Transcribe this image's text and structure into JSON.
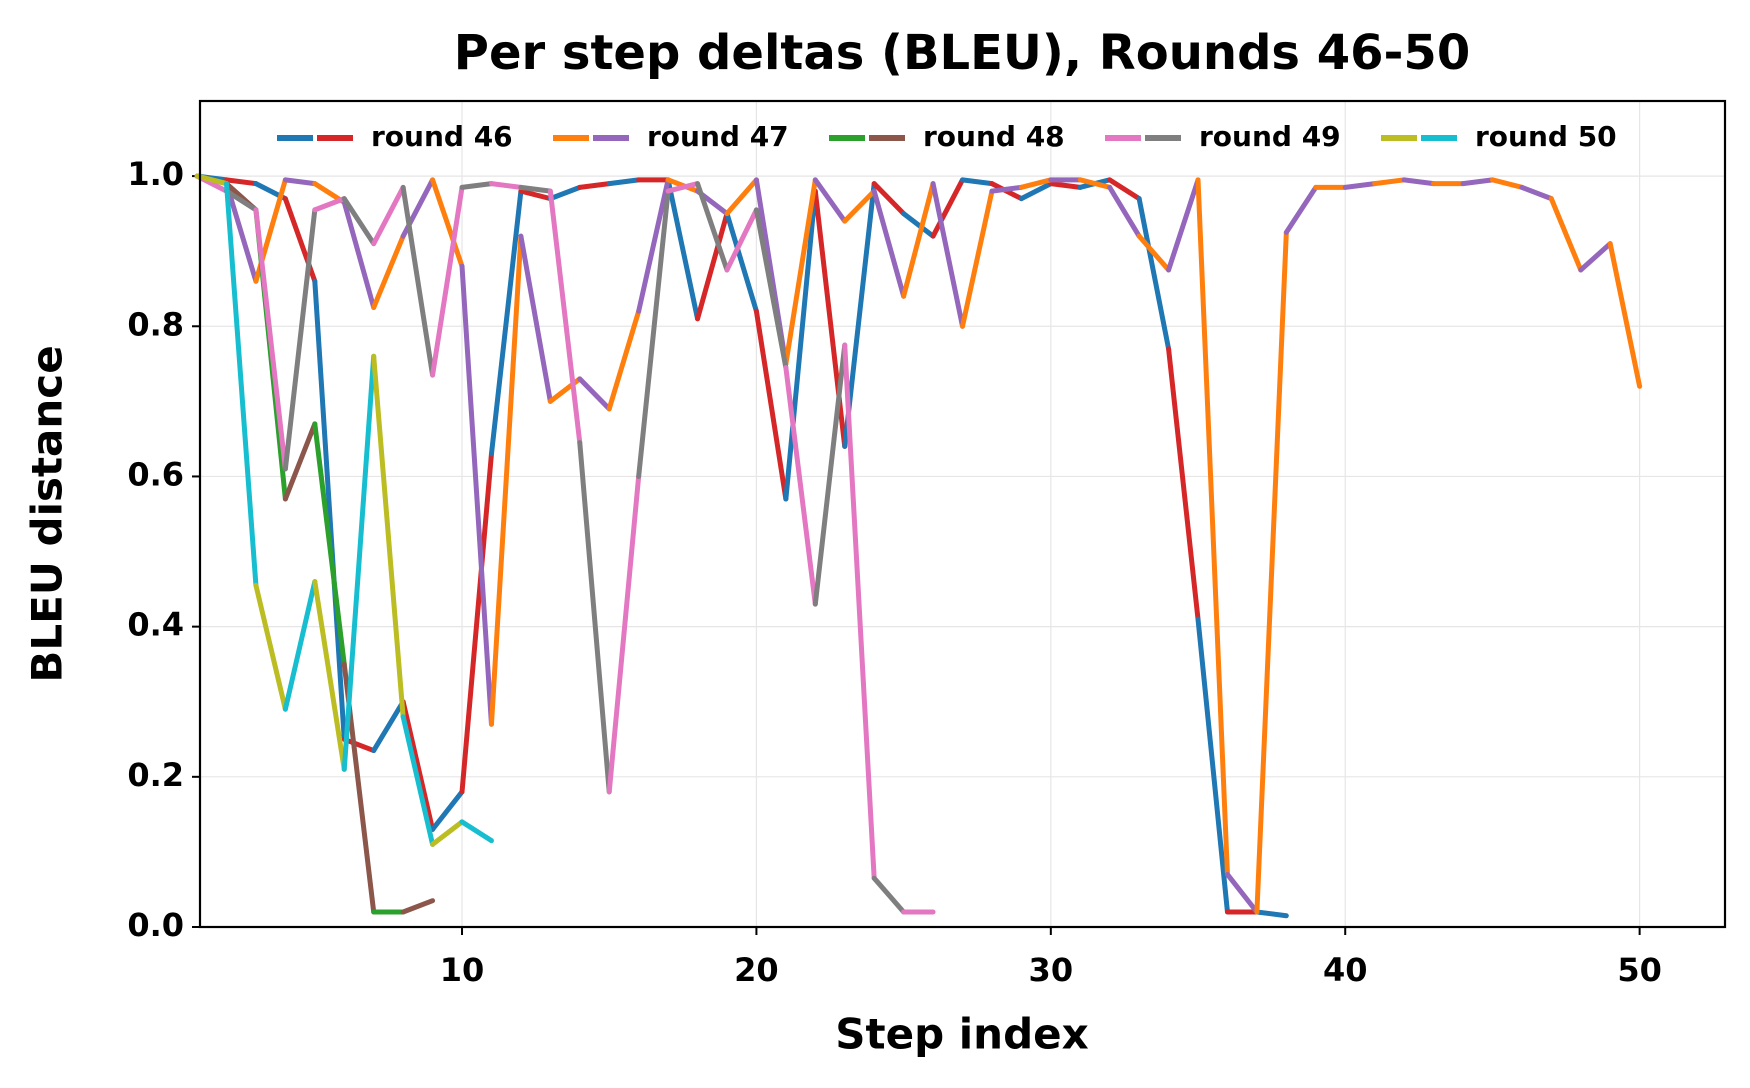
{
  "chart_data": {
    "type": "line",
    "title": "Per step deltas (BLEU), Rounds 46-50",
    "xlabel": "Step index",
    "ylabel": "BLEU distance",
    "x": [
      1,
      2,
      3,
      4,
      5,
      6,
      7,
      8,
      9,
      10,
      11,
      12,
      13,
      14,
      15,
      16,
      17,
      18,
      19,
      20,
      21,
      22,
      23,
      24,
      25,
      26,
      27,
      28,
      29,
      30,
      31,
      32,
      33,
      34,
      35,
      36,
      37,
      38,
      39,
      40,
      41,
      42,
      43,
      44,
      45,
      46,
      47,
      48,
      49,
      50
    ],
    "xlim": [
      1.1,
      52.9
    ],
    "xticks": [
      10,
      20,
      30,
      40,
      50
    ],
    "ylim": [
      0,
      1.1
    ],
    "yticks": [
      {
        "value": 0,
        "label": "0.0"
      },
      0.2,
      0.4,
      0.6,
      0.8,
      {
        "value": 1,
        "label": "1.0"
      }
    ],
    "grid": true,
    "legend": "upper center",
    "series": [
      {
        "name": "round 46",
        "colors": [
          "#1f77b4",
          "#d62728"
        ],
        "values": [
          1.0,
          0.995,
          0.99,
          0.97,
          0.86,
          0.25,
          0.235,
          0.3,
          0.13,
          0.18,
          0.63,
          0.98,
          0.97,
          0.985,
          0.99,
          0.995,
          0.995,
          0.81,
          0.95,
          0.82,
          0.57,
          0.98,
          0.64,
          0.99,
          0.95,
          0.92,
          0.995,
          0.99,
          0.97,
          0.99,
          0.985,
          0.995,
          0.97,
          0.77,
          0.41,
          0.02,
          0.02,
          0.015,
          null,
          null,
          null,
          null,
          null,
          null,
          null,
          null,
          null,
          null,
          null,
          null
        ]
      },
      {
        "name": "round 47",
        "colors": [
          "#ff7f0e",
          "#9467bd"
        ],
        "values": [
          1.0,
          0.99,
          0.86,
          0.995,
          0.99,
          0.965,
          0.825,
          0.92,
          0.995,
          0.88,
          0.27,
          0.92,
          0.7,
          0.73,
          0.69,
          0.82,
          0.995,
          0.98,
          0.95,
          0.995,
          0.75,
          0.995,
          0.94,
          0.98,
          0.84,
          0.99,
          0.8,
          0.98,
          0.985,
          0.995,
          0.995,
          0.985,
          0.92,
          0.875,
          0.995,
          0.07,
          0.02,
          0.925,
          0.985,
          0.985,
          0.99,
          0.995,
          0.99,
          0.99,
          0.995,
          0.985,
          0.97,
          0.875,
          0.91,
          0.72
        ]
      },
      {
        "name": "round 48",
        "colors": [
          "#2ca02c",
          "#8c564b"
        ],
        "values": [
          1.0,
          0.99,
          0.955,
          0.57,
          0.67,
          0.35,
          0.02,
          0.02,
          0.035,
          null,
          null,
          null,
          null,
          null,
          null,
          null,
          null,
          null,
          null,
          null,
          null,
          null,
          null,
          null,
          null,
          null,
          null,
          null,
          null,
          null,
          null,
          null,
          null,
          null,
          null,
          null,
          null,
          null,
          null,
          null,
          null,
          null,
          null,
          null,
          null,
          null,
          null,
          null,
          null,
          null
        ]
      },
      {
        "name": "round 49",
        "colors": [
          "#e377c2",
          "#7f7f7f"
        ],
        "values": [
          1.0,
          0.98,
          0.955,
          0.61,
          0.955,
          0.97,
          0.91,
          0.985,
          0.735,
          0.985,
          0.99,
          0.985,
          0.98,
          0.645,
          0.18,
          0.6,
          0.98,
          0.99,
          0.875,
          0.955,
          0.745,
          0.43,
          0.775,
          0.065,
          0.02,
          0.02,
          null,
          null,
          null,
          null,
          null,
          null,
          null,
          null,
          null,
          null,
          null,
          null,
          null,
          null,
          null,
          null,
          null,
          null,
          null,
          null,
          null,
          null,
          null,
          null
        ]
      },
      {
        "name": "round 50",
        "colors": [
          "#bcbd22",
          "#17becf"
        ],
        "values": [
          1.0,
          0.99,
          0.455,
          0.29,
          0.46,
          0.21,
          0.76,
          0.28,
          0.11,
          0.14,
          0.115,
          null,
          null,
          null,
          null,
          null,
          null,
          null,
          null,
          null,
          null,
          null,
          null,
          null,
          null,
          null,
          null,
          null,
          null,
          null,
          null,
          null,
          null,
          null,
          null,
          null,
          null,
          null,
          null,
          null,
          null,
          null,
          null,
          null,
          null,
          null,
          null,
          null,
          null,
          null
        ]
      }
    ]
  }
}
